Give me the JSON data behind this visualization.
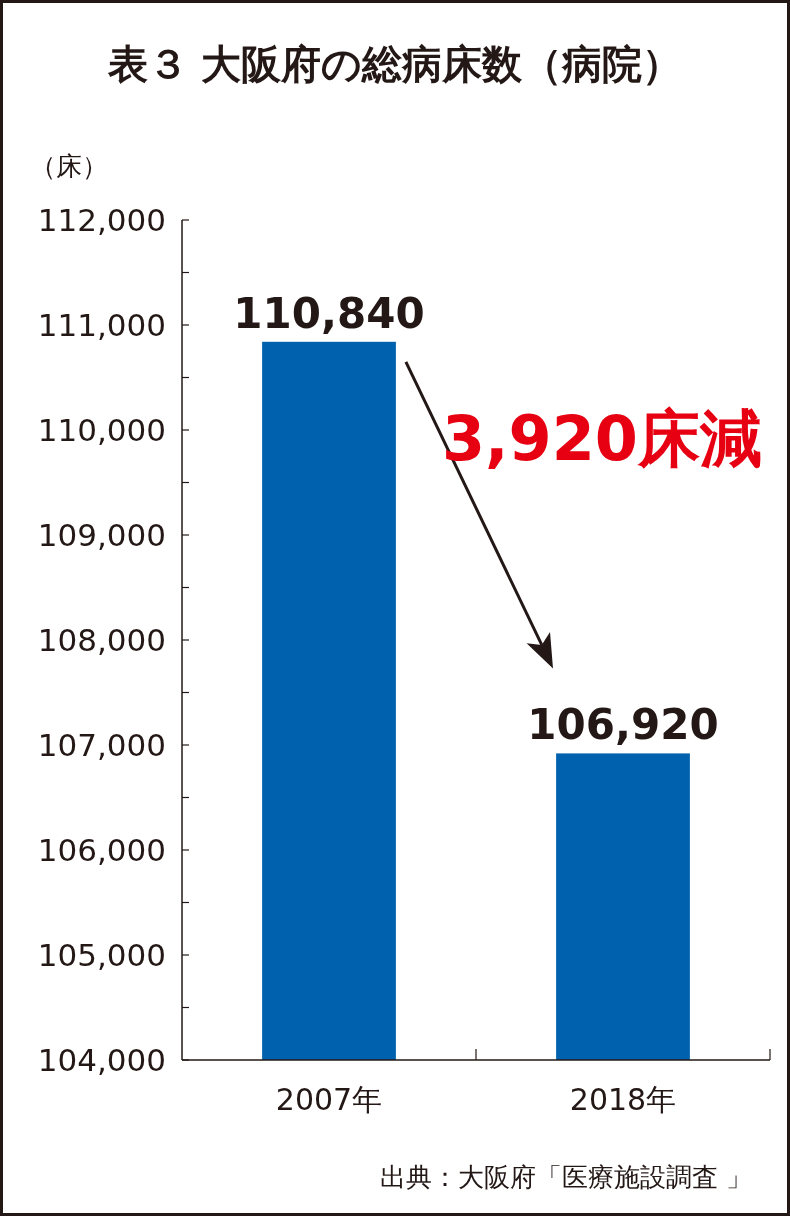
{
  "chart_data": {
    "type": "bar",
    "title": "表３ 大阪府の総病床数（病院）",
    "ylabel": "（床）",
    "categories": [
      "2007年",
      "2018年"
    ],
    "values": [
      110840,
      106920
    ],
    "color": "#0062ae",
    "value_labels": [
      "110,840",
      "106,920"
    ],
    "ylim": [
      104000,
      112000
    ],
    "yticks": [
      {
        "value": 104000,
        "label": "104,000"
      },
      {
        "value": 104500,
        "label": null
      },
      {
        "value": 105000,
        "label": "105,000"
      },
      {
        "value": 105500,
        "label": null
      },
      {
        "value": 106000,
        "label": "106,000"
      },
      {
        "value": 106500,
        "label": null
      },
      {
        "value": 107000,
        "label": "107,000"
      },
      {
        "value": 107500,
        "label": null
      },
      {
        "value": 108000,
        "label": "108,000"
      },
      {
        "value": 108500,
        "label": null
      },
      {
        "value": 109000,
        "label": "109,000"
      },
      {
        "value": 109500,
        "label": null
      },
      {
        "value": 110000,
        "label": "110,000"
      },
      {
        "value": 110500,
        "label": null
      },
      {
        "value": 111000,
        "label": "111,000"
      },
      {
        "value": 111500,
        "label": null
      },
      {
        "value": 112000,
        "label": "112,000"
      }
    ],
    "annotations": [
      "3,920床減",
      "出典：大阪府「医療施設調査 」"
    ]
  }
}
